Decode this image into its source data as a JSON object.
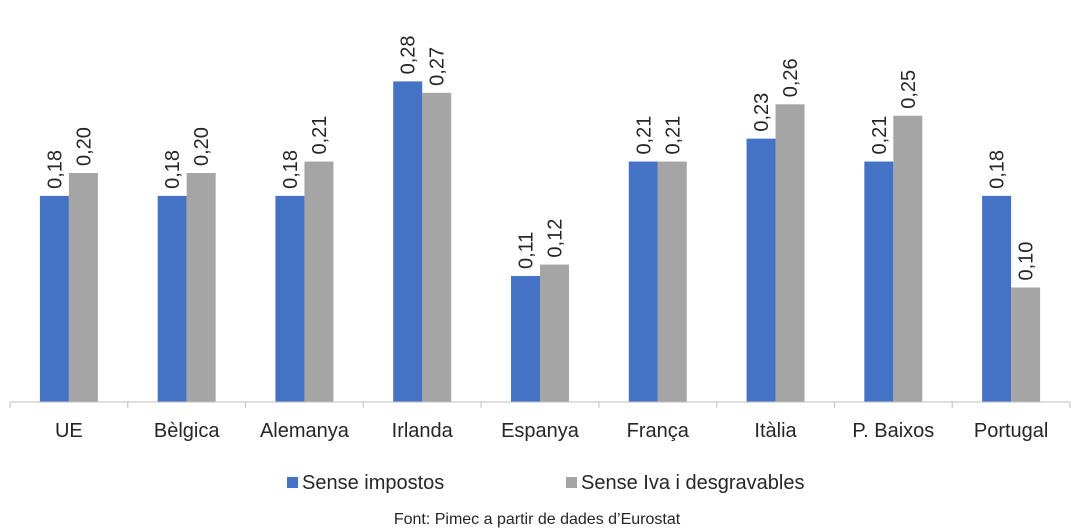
{
  "chart_data": {
    "type": "bar",
    "categories": [
      "UE",
      "Bèlgica",
      "Alemanya",
      "Irlanda",
      "Espanya",
      "França",
      "Itàlia",
      "P. Baixos",
      "Portugal"
    ],
    "series": [
      {
        "name": "Sense impostos",
        "color": "#4472C4",
        "values": [
          0.18,
          0.18,
          0.18,
          0.28,
          0.11,
          0.21,
          0.23,
          0.21,
          0.18
        ],
        "labels": [
          "0,18",
          "0,18",
          "0,18",
          "0,28",
          "0,11",
          "0,21",
          "0,23",
          "0,21",
          "0,18"
        ]
      },
      {
        "name": "Sense Iva i desgravables",
        "color": "#A5A5A5",
        "values": [
          0.2,
          0.2,
          0.21,
          0.27,
          0.12,
          0.21,
          0.26,
          0.25,
          0.1
        ],
        "labels": [
          "0,20",
          "0,20",
          "0,21",
          "0,27",
          "0,12",
          "0,21",
          "0,26",
          "0,25",
          "0,10"
        ]
      }
    ],
    "ylim": [
      0,
      0.3
    ],
    "grid": false,
    "legend_position": "bottom"
  },
  "source": "Font: Pimec a partir de dades d’Eurostat"
}
